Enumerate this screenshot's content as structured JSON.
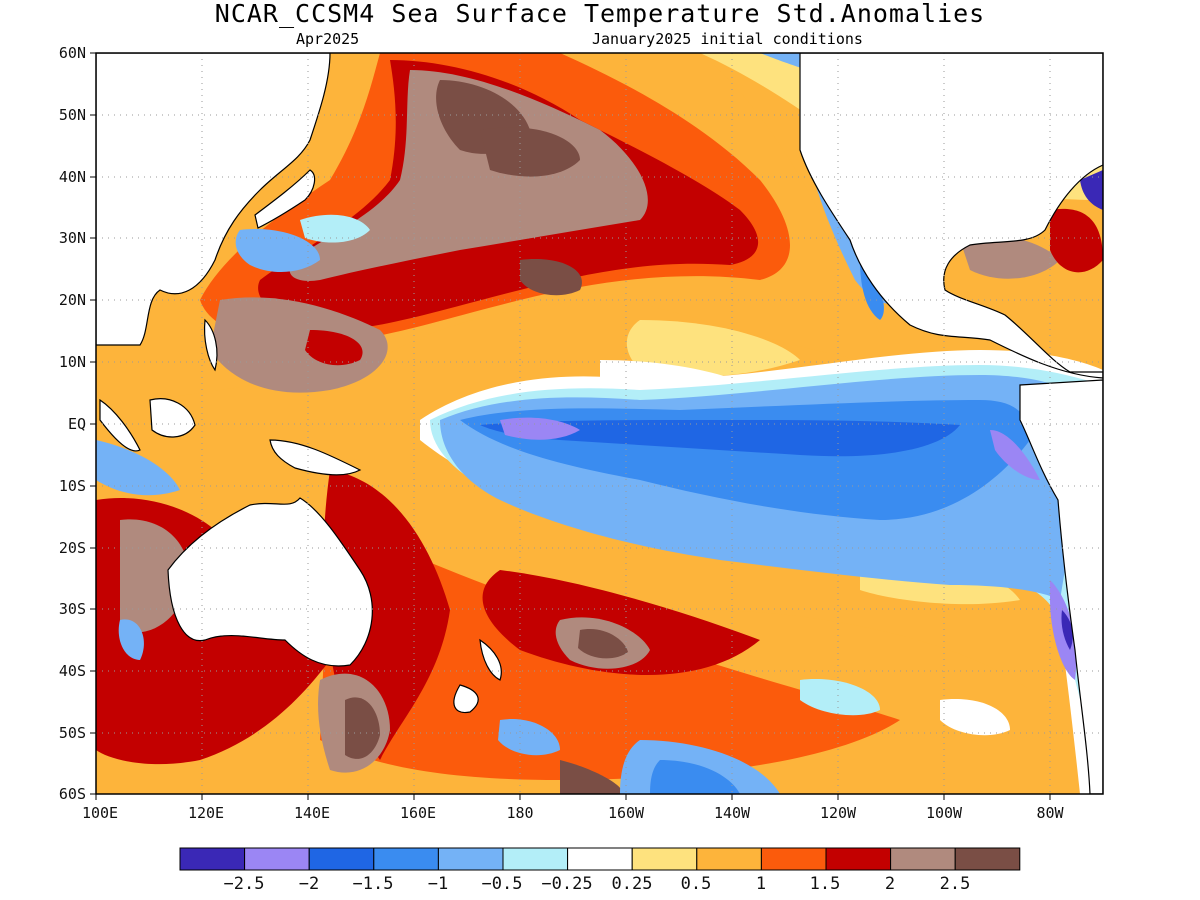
{
  "title": "NCAR_CCSM4 Sea Surface Temperature Std.Anomalies",
  "subtitle_left": "Apr2025",
  "subtitle_right": "January2025 initial conditions",
  "axes": {
    "y_ticks": [
      "60N",
      "50N",
      "40N",
      "30N",
      "20N",
      "10N",
      "EQ",
      "10S",
      "20S",
      "30S",
      "40S",
      "50S",
      "60S"
    ],
    "x_ticks": [
      "100E",
      "120E",
      "140E",
      "160E",
      "180",
      "160W",
      "140W",
      "120W",
      "100W",
      "80W"
    ],
    "lat_range": [
      -60,
      60
    ],
    "lon_range_east": [
      100,
      290
    ],
    "grid": "dotted"
  },
  "colors": {
    "land": "#ffffff",
    "coast": "#000000",
    "bins": [
      "#3a28b6",
      "#9b86f4",
      "#1f66e4",
      "#3a8cf0",
      "#74b2f6",
      "#b3eef8",
      "#ffffff",
      "#fee27e",
      "#fdb43b",
      "#fb5b0c",
      "#c30000",
      "#b08a7e",
      "#7a4e45"
    ]
  },
  "legend": {
    "labels": [
      "−2.5",
      "−2",
      "−1.5",
      "−1",
      "−0.5",
      "−0.25",
      "0.25",
      "0.5",
      "1",
      "1.5",
      "2",
      "2.5"
    ]
  }
}
